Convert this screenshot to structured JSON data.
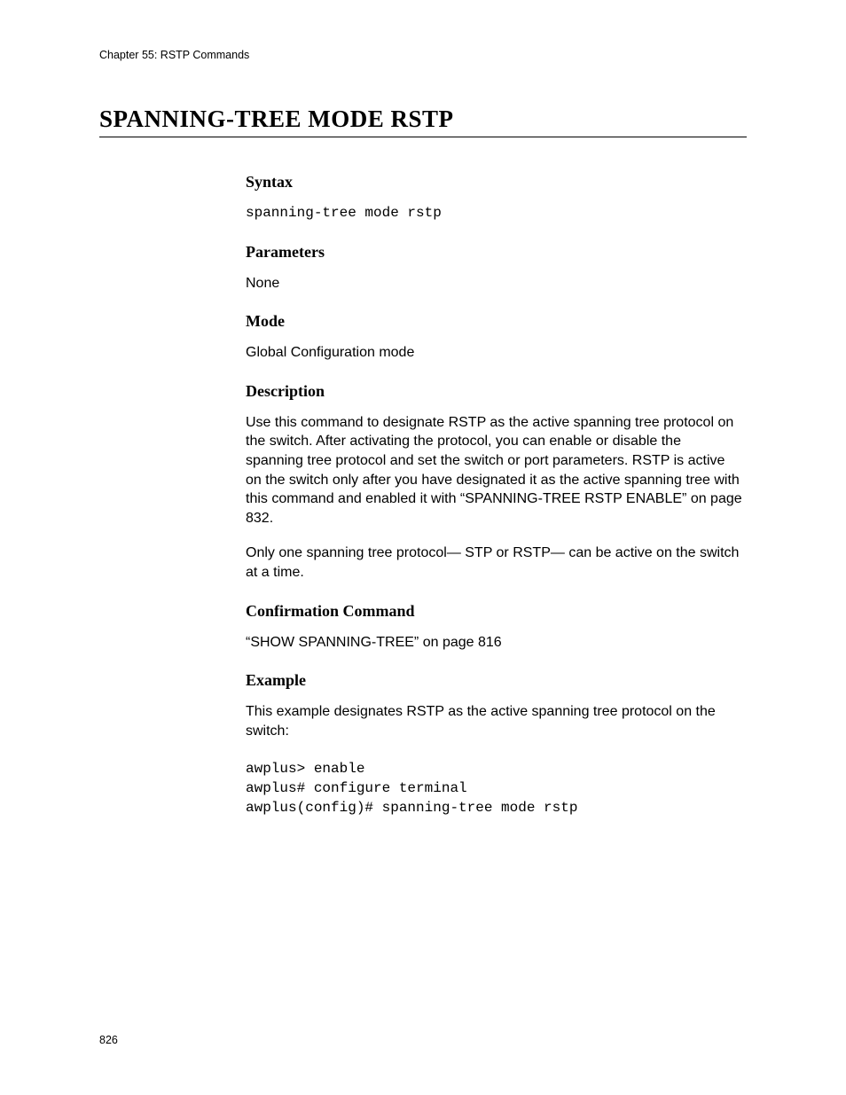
{
  "header": {
    "chapter_label": "Chapter 55: RSTP Commands"
  },
  "title": "SPANNING-TREE MODE RSTP",
  "sections": {
    "syntax": {
      "heading": "Syntax",
      "code": "spanning-tree mode rstp"
    },
    "parameters": {
      "heading": "Parameters",
      "text": "None"
    },
    "mode": {
      "heading": "Mode",
      "text": "Global Configuration mode"
    },
    "description": {
      "heading": "Description",
      "para1": "Use this command to designate RSTP as the active spanning tree protocol on the switch. After activating the protocol, you can enable or disable the spanning tree protocol and set the switch or port parameters. RSTP is active on the switch only after you have designated it as the active spanning tree with this command and enabled it with “SPANNING-TREE RSTP ENABLE” on page 832.",
      "para2": "Only one spanning tree protocol— STP or RSTP— can be active on the switch at a time."
    },
    "confirmation": {
      "heading": "Confirmation Command",
      "text": "“SHOW SPANNING-TREE” on page 816"
    },
    "example": {
      "heading": "Example",
      "intro": "This example designates RSTP as the active spanning tree protocol on the switch:",
      "code": "awplus> enable\nawplus# configure terminal\nawplus(config)# spanning-tree mode rstp"
    }
  },
  "footer": {
    "page_number": "826"
  }
}
